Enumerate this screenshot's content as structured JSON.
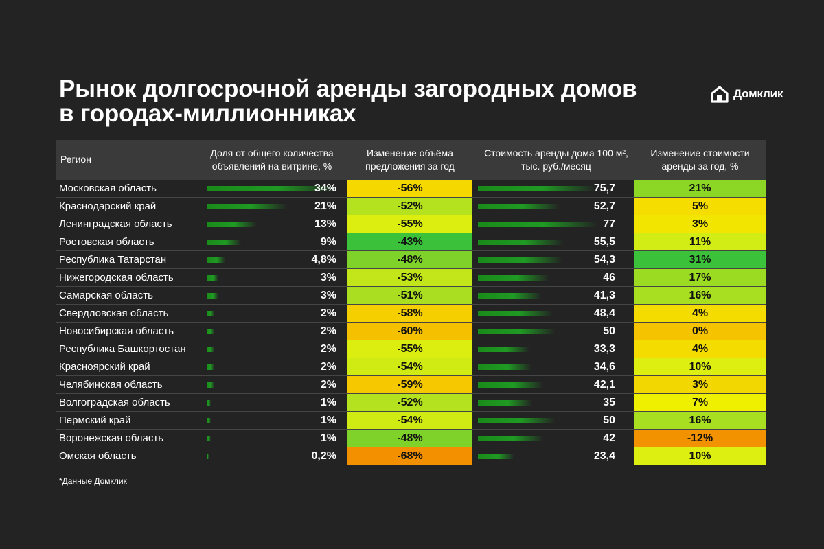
{
  "title_line1": "Рынок долгосрочной аренды загородных домов",
  "title_line2": "в городах-миллионниках",
  "brand": "Домклик",
  "footnote": "*Данные Домклик",
  "colors": {
    "background": "#232323",
    "header_bg": "#3a3a3a",
    "bar_green": "#1f9a23"
  },
  "chart_data": {
    "type": "table",
    "columns": [
      "Регион",
      "Доля от общего количества объявлений на витрине, %",
      "Изменение объёма предложения за год",
      "Стоимость аренды дома 100 м², тыс. руб./месяц",
      "Изменение стоимости аренды за год, %"
    ],
    "rows": [
      {
        "region": "Московская область",
        "share": 34,
        "share_label": "34%",
        "volume_change": -56,
        "volume_label": "-56%",
        "volume_color": "#f5d800",
        "price": 75.7,
        "price_label": "75,7",
        "price_change": 21,
        "price_change_label": "21%",
        "price_change_color": "#8cd626"
      },
      {
        "region": "Краснодарский край",
        "share": 21,
        "share_label": "21%",
        "volume_change": -52,
        "volume_label": "-52%",
        "volume_color": "#b5e21f",
        "price": 52.7,
        "price_label": "52,7",
        "price_change": 5,
        "price_change_label": "5%",
        "price_change_color": "#f5dd00"
      },
      {
        "region": "Ленинградская область",
        "share": 13,
        "share_label": "13%",
        "volume_change": -55,
        "volume_label": "-55%",
        "volume_color": "#dbee10",
        "price": 77,
        "price_label": "77",
        "price_change": 3,
        "price_change_label": "3%",
        "price_change_color": "#f2e600"
      },
      {
        "region": "Ростовская область",
        "share": 9,
        "share_label": "9%",
        "volume_change": -43,
        "volume_label": "-43%",
        "volume_color": "#3cc23a",
        "price": 55.5,
        "price_label": "55,5",
        "price_change": 11,
        "price_change_label": "11%",
        "price_change_color": "#d2ec16"
      },
      {
        "region": "Республика Татарстан",
        "share": 4.8,
        "share_label": "4,8%",
        "volume_change": -48,
        "volume_label": "-48%",
        "volume_color": "#7fd22a",
        "price": 54.3,
        "price_label": "54,3",
        "price_change": 31,
        "price_change_label": "31%",
        "price_change_color": "#3cc23a"
      },
      {
        "region": "Нижегородская область",
        "share": 3,
        "share_label": "3%",
        "volume_change": -53,
        "volume_label": "-53%",
        "volume_color": "#c3e61a",
        "price": 46,
        "price_label": "46",
        "price_change": 17,
        "price_change_label": "17%",
        "price_change_color": "#9bdb22"
      },
      {
        "region": "Самарская область",
        "share": 3,
        "share_label": "3%",
        "volume_change": -51,
        "volume_label": "-51%",
        "volume_color": "#a9df20",
        "price": 41.3,
        "price_label": "41,3",
        "price_change": 16,
        "price_change_label": "16%",
        "price_change_color": "#a8df20"
      },
      {
        "region": "Свердловская область",
        "share": 2,
        "share_label": "2%",
        "volume_change": -58,
        "volume_label": "-58%",
        "volume_color": "#f5cf00",
        "price": 48.4,
        "price_label": "48,4",
        "price_change": 4,
        "price_change_label": "4%",
        "price_change_color": "#f5dc00"
      },
      {
        "region": "Новосибирская область",
        "share": 2,
        "share_label": "2%",
        "volume_change": -60,
        "volume_label": "-60%",
        "volume_color": "#f5c000",
        "price": 50,
        "price_label": "50",
        "price_change": 0,
        "price_change_label": "0%",
        "price_change_color": "#f5c300"
      },
      {
        "region": "Республика Башкортостан",
        "share": 2,
        "share_label": "2%",
        "volume_change": -55,
        "volume_label": "-55%",
        "volume_color": "#dbee10",
        "price": 33.3,
        "price_label": "33,3",
        "price_change": 4,
        "price_change_label": "4%",
        "price_change_color": "#f5dc00"
      },
      {
        "region": "Красноярский край",
        "share": 2,
        "share_label": "2%",
        "volume_change": -54,
        "volume_label": "-54%",
        "volume_color": "#d0ea14",
        "price": 34.6,
        "price_label": "34,6",
        "price_change": 10,
        "price_change_label": "10%",
        "price_change_color": "#dcef10"
      },
      {
        "region": "Челябинская область",
        "share": 2,
        "share_label": "2%",
        "volume_change": -59,
        "volume_label": "-59%",
        "volume_color": "#f5c800",
        "price": 42.1,
        "price_label": "42,1",
        "price_change": 3,
        "price_change_label": "3%",
        "price_change_color": "#f2d800"
      },
      {
        "region": "Волгоградская область",
        "share": 1,
        "share_label": "1%",
        "volume_change": -52,
        "volume_label": "-52%",
        "volume_color": "#b5e21f",
        "price": 35,
        "price_label": "35",
        "price_change": 7,
        "price_change_label": "7%",
        "price_change_color": "#eef000"
      },
      {
        "region": "Пермский край",
        "share": 1,
        "share_label": "1%",
        "volume_change": -54,
        "volume_label": "-54%",
        "volume_color": "#d0ea14",
        "price": 50,
        "price_label": "50",
        "price_change": 16,
        "price_change_label": "16%",
        "price_change_color": "#a8df20"
      },
      {
        "region": "Воронежская область",
        "share": 1,
        "share_label": "1%",
        "volume_change": -48,
        "volume_label": "-48%",
        "volume_color": "#7fd22a",
        "price": 42,
        "price_label": "42",
        "price_change": -12,
        "price_change_label": "-12%",
        "price_change_color": "#f39200"
      },
      {
        "region": "Омская область",
        "share": 0.2,
        "share_label": "0,2%",
        "volume_change": -68,
        "volume_label": "-68%",
        "volume_color": "#f29000",
        "price": 23.4,
        "price_label": "23,4",
        "price_change": 10,
        "price_change_label": "10%",
        "price_change_color": "#dcef10"
      }
    ],
    "share_max": 34,
    "price_max": 77
  }
}
